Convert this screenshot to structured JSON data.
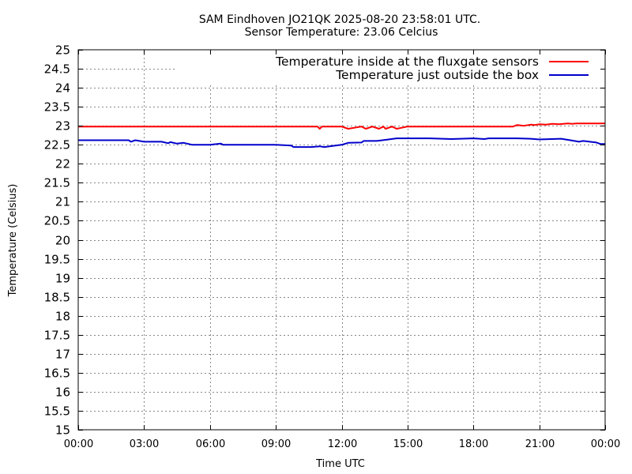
{
  "chart_data": {
    "type": "line",
    "title": "SAM Eindhoven JO21QK 2025-08-20 23:58:01 UTC.",
    "subtitle": "Sensor Temperature: 23.06 Celcius",
    "xlabel": "Time UTC",
    "ylabel": "Temperature (Celsius)",
    "xlim": [
      0,
      24
    ],
    "ylim": [
      15,
      25
    ],
    "grid": true,
    "legend_position": "top-right",
    "x_tick_labels": [
      "00:00",
      "03:00",
      "06:00",
      "09:00",
      "12:00",
      "15:00",
      "18:00",
      "21:00",
      "00:00"
    ],
    "y_tick_labels": [
      "15",
      "15.5",
      "16",
      "16.5",
      "17",
      "17.5",
      "18",
      "18.5",
      "19",
      "19.5",
      "20",
      "20.5",
      "21",
      "21.5",
      "22",
      "22.5",
      "23",
      "23.5",
      "24",
      "24.5",
      "25"
    ],
    "series": [
      {
        "name": "Temperature inside at the fluxgate sensors",
        "color": "#ff0000",
        "x": [
          0,
          10.9,
          11.0,
          11.1,
          11.2,
          12.0,
          12.3,
          12.9,
          13.1,
          13.4,
          13.7,
          13.9,
          14.0,
          14.3,
          14.5,
          15.0,
          18.0,
          19.8,
          20.0,
          20.3,
          20.6,
          20.8,
          21.0,
          21.3,
          21.6,
          21.9,
          22.3,
          22.5,
          22.7,
          23.0,
          24.0
        ],
        "y": [
          22.98,
          22.98,
          22.92,
          22.98,
          22.98,
          22.98,
          22.92,
          22.98,
          22.92,
          22.98,
          22.92,
          22.98,
          22.92,
          22.98,
          22.92,
          22.98,
          22.98,
          22.98,
          23.02,
          23.0,
          23.03,
          23.02,
          23.04,
          23.03,
          23.05,
          23.04,
          23.06,
          23.05,
          23.06,
          23.06,
          23.06
        ]
      },
      {
        "name": "Temperature just outside the box",
        "color": "#0000cc",
        "x": [
          0,
          2.3,
          2.4,
          2.6,
          3.0,
          3.8,
          4.1,
          4.2,
          4.5,
          4.8,
          5.2,
          6.0,
          6.5,
          6.6,
          7.0,
          8.0,
          9.0,
          9.7,
          9.8,
          10.2,
          10.6,
          11.0,
          11.2,
          12.0,
          12.3,
          12.9,
          13.0,
          13.6,
          14.0,
          14.5,
          15.0,
          16.0,
          17.0,
          18.0,
          18.5,
          18.7,
          19.0,
          20.0,
          20.6,
          21.0,
          22.0,
          22.6,
          22.8,
          23.0,
          23.6,
          23.8,
          24.0
        ],
        "y": [
          22.62,
          22.62,
          22.58,
          22.62,
          22.58,
          22.58,
          22.54,
          22.57,
          22.53,
          22.55,
          22.5,
          22.5,
          22.53,
          22.5,
          22.5,
          22.5,
          22.5,
          22.48,
          22.44,
          22.44,
          22.44,
          22.46,
          22.44,
          22.5,
          22.55,
          22.56,
          22.6,
          22.6,
          22.63,
          22.67,
          22.67,
          22.67,
          22.65,
          22.67,
          22.65,
          22.67,
          22.67,
          22.67,
          22.66,
          22.64,
          22.66,
          22.6,
          22.58,
          22.6,
          22.56,
          22.52,
          22.52
        ]
      }
    ]
  }
}
